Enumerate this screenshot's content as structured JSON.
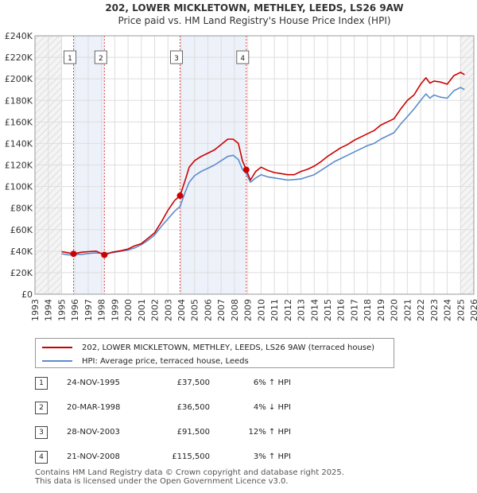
{
  "chart_data": {
    "type": "line",
    "title": "202, LOWER MICKLETOWN, METHLEY, LEEDS, LS26 9AW",
    "subtitle": "Price paid vs. HM Land Registry's House Price Index (HPI)",
    "xlim": [
      1993,
      2026
    ],
    "ylim": [
      0,
      240000
    ],
    "y_ticks": [
      0,
      20000,
      40000,
      60000,
      80000,
      100000,
      120000,
      140000,
      160000,
      180000,
      200000,
      220000,
      240000
    ],
    "y_tick_labels": [
      "£0",
      "£20K",
      "£40K",
      "£60K",
      "£80K",
      "£100K",
      "£120K",
      "£140K",
      "£160K",
      "£180K",
      "£200K",
      "£220K",
      "£240K"
    ],
    "x_ticks": [
      1993,
      1994,
      1995,
      1996,
      1997,
      1998,
      1999,
      2000,
      2001,
      2002,
      2003,
      2004,
      2005,
      2006,
      2007,
      2008,
      2009,
      2010,
      2011,
      2012,
      2013,
      2014,
      2015,
      2016,
      2017,
      2018,
      2019,
      2020,
      2021,
      2022,
      2023,
      2024,
      2025,
      2026
    ],
    "x_tick_labels": [
      "1993",
      "1994",
      "1995",
      "1996",
      "1997",
      "1998",
      "1999",
      "2000",
      "2001",
      "2002",
      "2003",
      "2004",
      "2005",
      "2006",
      "2007",
      "2008",
      "2009",
      "2010",
      "2011",
      "2012",
      "2013",
      "2014",
      "2015",
      "2016",
      "2017",
      "2018",
      "2019",
      "2020",
      "2021",
      "2022",
      "2023",
      "2024",
      "2025",
      "2026"
    ],
    "hatched_ranges": [
      [
        1993,
        1995.0
      ],
      [
        2025.0,
        2026
      ]
    ],
    "shaded_ranges": [
      [
        1995.9,
        1998.22
      ],
      [
        2003.91,
        2008.89
      ]
    ],
    "series": [
      {
        "name": "202, LOWER MICKLETOWN, METHLEY, LEEDS, LS26 9AW (terraced house)",
        "color": "#cc0000",
        "x": [
          1995.0,
          1995.5,
          1995.9,
          1996.5,
          1997.0,
          1997.6,
          1998.22,
          1998.8,
          1999.5,
          2000.0,
          2000.5,
          2001.0,
          2001.5,
          2002.0,
          2002.5,
          2003.0,
          2003.5,
          2003.91,
          2004.3,
          2004.6,
          2005.0,
          2005.5,
          2006.0,
          2006.5,
          2007.0,
          2007.5,
          2007.9,
          2008.3,
          2008.6,
          2008.89,
          2009.2,
          2009.6,
          2010.0,
          2010.5,
          2011.0,
          2011.5,
          2012.0,
          2012.5,
          2013.0,
          2013.5,
          2014.0,
          2014.5,
          2015.0,
          2015.5,
          2016.0,
          2016.5,
          2017.0,
          2017.5,
          2018.0,
          2018.5,
          2019.0,
          2019.5,
          2020.0,
          2020.5,
          2021.0,
          2021.5,
          2022.0,
          2022.4,
          2022.7,
          2023.0,
          2023.5,
          2024.0,
          2024.5,
          2025.0,
          2025.3
        ],
        "values": [
          39500,
          38500,
          37500,
          39000,
          39500,
          40000,
          36500,
          39000,
          40500,
          42000,
          45000,
          47000,
          52000,
          57000,
          67000,
          78000,
          87000,
          91500,
          106000,
          118000,
          124000,
          128000,
          131000,
          134000,
          139000,
          144000,
          144000,
          140000,
          124000,
          115500,
          106000,
          114000,
          118000,
          115000,
          113000,
          112000,
          111000,
          111000,
          114000,
          116000,
          119000,
          123000,
          128000,
          132000,
          136000,
          139000,
          143000,
          146000,
          149000,
          152000,
          157000,
          160000,
          163000,
          172000,
          180000,
          185000,
          195000,
          201000,
          196000,
          198000,
          197000,
          195000,
          203000,
          206000,
          204000
        ]
      },
      {
        "name": "HPI: Average price, terraced house, Leeds",
        "color": "#5b8ccc",
        "x": [
          1995.0,
          1995.5,
          1996.0,
          1996.5,
          1997.0,
          1997.5,
          1998.0,
          1998.5,
          1999.0,
          1999.5,
          2000.0,
          2000.5,
          2001.0,
          2001.5,
          2002.0,
          2002.5,
          2003.0,
          2003.5,
          2003.91,
          2004.3,
          2004.6,
          2005.0,
          2005.5,
          2006.0,
          2006.5,
          2007.0,
          2007.5,
          2007.9,
          2008.3,
          2008.6,
          2008.89,
          2009.2,
          2009.6,
          2010.0,
          2010.5,
          2011.0,
          2011.5,
          2012.0,
          2012.5,
          2013.0,
          2013.5,
          2014.0,
          2014.5,
          2015.0,
          2015.5,
          2016.0,
          2016.5,
          2017.0,
          2017.5,
          2018.0,
          2018.5,
          2019.0,
          2019.5,
          2020.0,
          2020.5,
          2021.0,
          2021.5,
          2022.0,
          2022.4,
          2022.7,
          2023.0,
          2023.5,
          2024.0,
          2024.5,
          2025.0,
          2025.3
        ],
        "values": [
          37500,
          36500,
          37000,
          37000,
          37800,
          38300,
          38000,
          38200,
          39000,
          40000,
          41000,
          43000,
          46000,
          50000,
          55000,
          63000,
          70000,
          77000,
          81500,
          95000,
          104000,
          110000,
          114000,
          117000,
          120000,
          124000,
          128000,
          129000,
          125000,
          116000,
          112000,
          104000,
          108000,
          111000,
          109000,
          108000,
          107000,
          106000,
          106500,
          107000,
          109000,
          111000,
          115000,
          119000,
          123000,
          126000,
          129000,
          132000,
          135000,
          138000,
          140000,
          144000,
          147000,
          150000,
          158000,
          165000,
          172000,
          180000,
          186000,
          182000,
          185000,
          183000,
          182000,
          189000,
          192000,
          190000
        ]
      }
    ],
    "sales": [
      {
        "label": "1",
        "x": 1995.9,
        "value": 37500
      },
      {
        "label": "2",
        "x": 1998.22,
        "value": 36500
      },
      {
        "label": "3",
        "x": 2003.91,
        "value": 91500
      },
      {
        "label": "4",
        "x": 2008.89,
        "value": 115500
      }
    ]
  },
  "legend": {
    "items": [
      {
        "label": "202, LOWER MICKLETOWN, METHLEY, LEEDS, LS26 9AW (terraced house)",
        "color": "#cc0000"
      },
      {
        "label": "HPI: Average price, terraced house, Leeds",
        "color": "#5b8ccc"
      }
    ]
  },
  "transactions": [
    {
      "num": "1",
      "date": "24-NOV-1995",
      "price": "£37,500",
      "hpi": "6% ↑ HPI"
    },
    {
      "num": "2",
      "date": "20-MAR-1998",
      "price": "£36,500",
      "hpi": "4% ↓ HPI"
    },
    {
      "num": "3",
      "date": "28-NOV-2003",
      "price": "£91,500",
      "hpi": "12% ↑ HPI"
    },
    {
      "num": "4",
      "date": "21-NOV-2008",
      "price": "£115,500",
      "hpi": "3% ↑ HPI"
    }
  ],
  "footer": {
    "line1": "Contains HM Land Registry data © Crown copyright and database right 2025.",
    "line2": "This data is licensed under the Open Government Licence v3.0."
  }
}
